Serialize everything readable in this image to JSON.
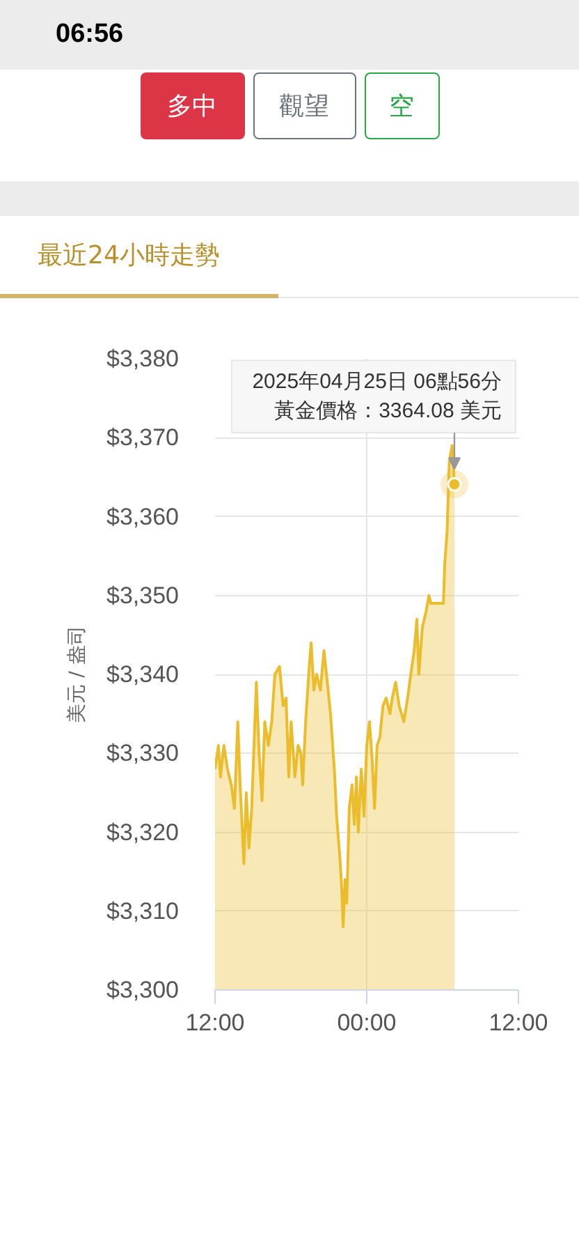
{
  "chart_data": {
    "type": "area",
    "title": "最近24小時走勢",
    "ylabel": "美元 / 盎司",
    "x": [
      "2025-04-24T12:00",
      "2025-04-24T12:16",
      "2025-04-24T12:26",
      "2025-04-24T12:42",
      "2025-04-24T12:59",
      "2025-04-24T13:17",
      "2025-04-24T13:32",
      "2025-04-24T13:48",
      "2025-04-24T13:59",
      "2025-04-24T14:17",
      "2025-04-24T14:28",
      "2025-04-24T14:41",
      "2025-04-24T14:54",
      "2025-04-24T15:16",
      "2025-04-24T15:29",
      "2025-04-24T15:43",
      "2025-04-24T15:56",
      "2025-04-24T16:13",
      "2025-04-24T16:29",
      "2025-04-24T16:44",
      "2025-04-24T17:06",
      "2025-04-24T17:23",
      "2025-04-24T17:37",
      "2025-04-24T17:50",
      "2025-04-24T18:01",
      "2025-04-24T18:19",
      "2025-04-24T18:34",
      "2025-04-24T18:47",
      "2025-04-24T18:56",
      "2025-04-24T19:10",
      "2025-04-24T19:27",
      "2025-04-24T19:36",
      "2025-04-24T19:49",
      "2025-04-24T20:02",
      "2025-04-24T20:20",
      "2025-04-24T20:37",
      "2025-04-24T20:53",
      "2025-04-24T21:08",
      "2025-04-24T21:26",
      "2025-04-24T21:37",
      "2025-04-24T21:52",
      "2025-04-24T22:01",
      "2025-04-24T22:08",
      "2025-04-24T22:17",
      "2025-04-24T22:25",
      "2025-04-24T22:37",
      "2025-04-24T22:50",
      "2025-04-24T23:01",
      "2025-04-24T23:11",
      "2025-04-24T23:20",
      "2025-04-24T23:34",
      "2025-04-24T23:47",
      "2025-04-25T00:00",
      "2025-04-25T00:13",
      "2025-04-25T00:26",
      "2025-04-25T00:37",
      "2025-04-25T00:49",
      "2025-04-25T01:02",
      "2025-04-25T01:17",
      "2025-04-25T01:32",
      "2025-04-25T01:50",
      "2025-04-25T02:01",
      "2025-04-25T02:17",
      "2025-04-25T02:34",
      "2025-04-25T02:56",
      "2025-04-25T03:14",
      "2025-04-25T03:29",
      "2025-04-25T03:45",
      "2025-04-25T03:58",
      "2025-04-25T04:07",
      "2025-04-25T04:24",
      "2025-04-25T04:42",
      "2025-04-25T04:55",
      "2025-04-25T05:04",
      "2025-04-25T06:04",
      "2025-04-25T06:10",
      "2025-04-25T06:21",
      "2025-04-25T06:32",
      "2025-04-25T06:45",
      "2025-04-25T06:56"
    ],
    "series": [
      {
        "color": "#ebbd2c",
        "values": [
          3328,
          3331,
          3327,
          3331,
          3328,
          3326,
          3323,
          3334,
          3326,
          3316,
          3325,
          3318,
          3323,
          3339,
          3330,
          3324,
          3334,
          3331,
          3334,
          3340,
          3341,
          3336,
          3337,
          3327,
          3334,
          3327,
          3331,
          3330,
          3326,
          3334,
          3341,
          3344,
          3338,
          3340,
          3338,
          3343,
          3339,
          3335,
          3328,
          3322,
          3317,
          3313,
          3308,
          3314,
          3311,
          3323,
          3326,
          3321,
          3327,
          3320,
          3328,
          3322,
          3331,
          3334,
          3329,
          3323,
          3331,
          3332,
          3336,
          3337,
          3335,
          3337,
          3339,
          3336,
          3334,
          3337,
          3340,
          3343,
          3347,
          3340,
          3346,
          3348,
          3350,
          3349,
          3349,
          3354,
          3358,
          3367,
          3369,
          3364.08
        ]
      }
    ],
    "xlim": [
      "2025-04-24T12:00",
      "2025-04-25T12:00"
    ],
    "xticks": [
      {
        "value": "2025-04-24T12:00",
        "label": "12:00"
      },
      {
        "value": "2025-04-25T00:00",
        "label": "00:00"
      },
      {
        "value": "2025-04-25T12:00",
        "label": "12:00"
      }
    ],
    "ylim": [
      3300,
      3380
    ],
    "yticks": [
      {
        "value": 3300,
        "label": "$3,300"
      },
      {
        "value": 3310,
        "label": "$3,310"
      },
      {
        "value": 3320,
        "label": "$3,320"
      },
      {
        "value": 3330,
        "label": "$3,330"
      },
      {
        "value": 3340,
        "label": "$3,340"
      },
      {
        "value": 3350,
        "label": "$3,350"
      },
      {
        "value": 3360,
        "label": "$3,360"
      },
      {
        "value": 3370,
        "label": "$3,370"
      },
      {
        "value": 3380,
        "label": "$3,380"
      }
    ],
    "grid": true,
    "annotations": [
      "06:56",
      "多中",
      "觀望",
      "空",
      "2025年04月25日 06點56分",
      {
        "text": "黃金價格：3364.08 美元",
        "x": "2025-04-25T06:56",
        "y": 3364.08
      }
    ]
  }
}
